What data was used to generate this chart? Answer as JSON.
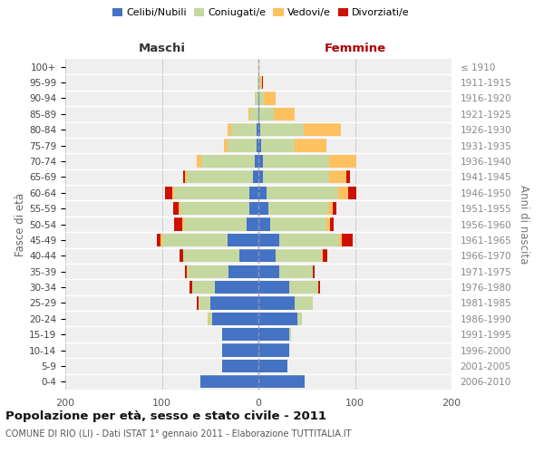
{
  "age_groups": [
    "0-4",
    "5-9",
    "10-14",
    "15-19",
    "20-24",
    "25-29",
    "30-34",
    "35-39",
    "40-44",
    "45-49",
    "50-54",
    "55-59",
    "60-64",
    "65-69",
    "70-74",
    "75-79",
    "80-84",
    "85-89",
    "90-94",
    "95-99",
    "100+"
  ],
  "birth_years": [
    "2006-2010",
    "2001-2005",
    "1996-2000",
    "1991-1995",
    "1986-1990",
    "1981-1985",
    "1976-1980",
    "1971-1975",
    "1966-1970",
    "1961-1965",
    "1956-1960",
    "1951-1955",
    "1946-1950",
    "1941-1945",
    "1936-1940",
    "1931-1935",
    "1926-1930",
    "1921-1925",
    "1916-1920",
    "1911-1915",
    "≤ 1910"
  ],
  "males": {
    "celibi": [
      60,
      38,
      38,
      38,
      48,
      50,
      45,
      31,
      20,
      32,
      12,
      9,
      9,
      6,
      4,
      2,
      2,
      0,
      0,
      0,
      0
    ],
    "coniugati": [
      0,
      0,
      0,
      0,
      4,
      12,
      24,
      42,
      58,
      68,
      65,
      72,
      78,
      68,
      55,
      30,
      26,
      8,
      4,
      1,
      0
    ],
    "vedovi": [
      0,
      0,
      0,
      0,
      1,
      0,
      0,
      1,
      0,
      1,
      2,
      2,
      2,
      2,
      5,
      4,
      4,
      2,
      0,
      0,
      0
    ],
    "divorziati": [
      0,
      0,
      0,
      0,
      0,
      2,
      2,
      2,
      4,
      4,
      8,
      5,
      8,
      2,
      0,
      0,
      0,
      0,
      0,
      0,
      0
    ]
  },
  "females": {
    "nubili": [
      48,
      30,
      32,
      32,
      40,
      38,
      32,
      22,
      18,
      22,
      12,
      10,
      8,
      5,
      5,
      3,
      2,
      1,
      1,
      0,
      0
    ],
    "coniugate": [
      0,
      0,
      0,
      2,
      5,
      18,
      30,
      34,
      48,
      62,
      58,
      62,
      75,
      68,
      68,
      35,
      45,
      15,
      5,
      2,
      0
    ],
    "vedove": [
      0,
      0,
      0,
      0,
      0,
      0,
      0,
      0,
      1,
      2,
      4,
      5,
      10,
      18,
      28,
      32,
      38,
      22,
      12,
      2,
      1
    ],
    "divorziate": [
      0,
      0,
      0,
      0,
      0,
      0,
      2,
      2,
      4,
      12,
      4,
      4,
      8,
      4,
      0,
      0,
      0,
      0,
      0,
      1,
      0
    ]
  },
  "colors": {
    "celibi": "#4472c4",
    "coniugati": "#c5d8a0",
    "vedovi": "#ffc060",
    "divorziati": "#cc1100"
  },
  "xlim": 200,
  "title": "Popolazione per età, sesso e stato civile - 2011",
  "subtitle": "COMUNE DI RIO (LI) - Dati ISTAT 1° gennaio 2011 - Elaborazione TUTTITALIA.IT",
  "ylabel_left": "Fasce di età",
  "ylabel_right": "Anni di nascita",
  "xlabel_left": "Maschi",
  "xlabel_right": "Femmine",
  "legend_labels": [
    "Celibi/Nubili",
    "Coniugati/e",
    "Vedovi/e",
    "Divorziati/e"
  ],
  "bg_color": "#efefef",
  "bar_height": 0.82
}
